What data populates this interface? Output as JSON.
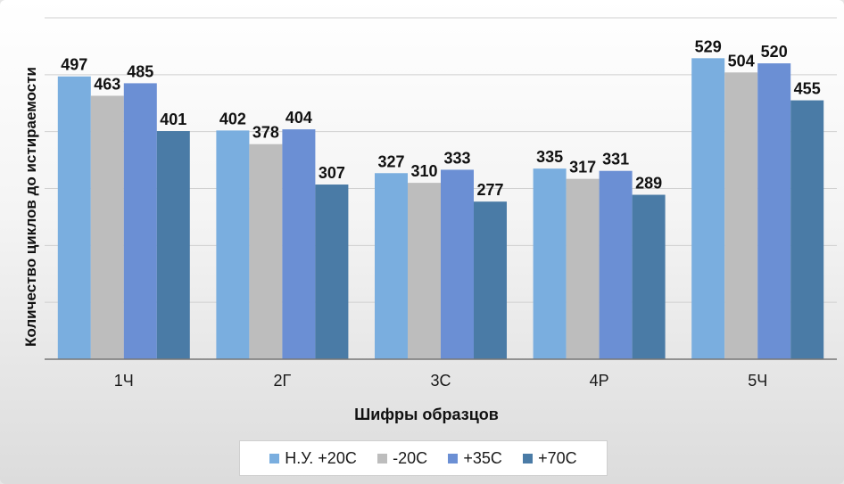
{
  "chart_data": {
    "type": "bar",
    "title": "",
    "xlabel": "Шифры образцов",
    "ylabel": "Количество циклов до истираемости",
    "categories": [
      "1Ч",
      "2Г",
      "3С",
      "4Р",
      "5Ч"
    ],
    "series": [
      {
        "name": "Н.У. +20С",
        "color": "#7aaedf",
        "values": [
          497,
          402,
          327,
          335,
          529
        ]
      },
      {
        "name": "-20С",
        "color": "#bdbdbd",
        "values": [
          463,
          378,
          310,
          317,
          504
        ]
      },
      {
        "name": "+35С",
        "color": "#6b8fd4",
        "values": [
          485,
          404,
          333,
          331,
          520
        ]
      },
      {
        "name": "+70С",
        "color": "#4a7ba6",
        "values": [
          401,
          307,
          277,
          289,
          455
        ]
      }
    ],
    "ylim": [
      0,
      600
    ],
    "grid": true,
    "legend_position": "bottom"
  }
}
